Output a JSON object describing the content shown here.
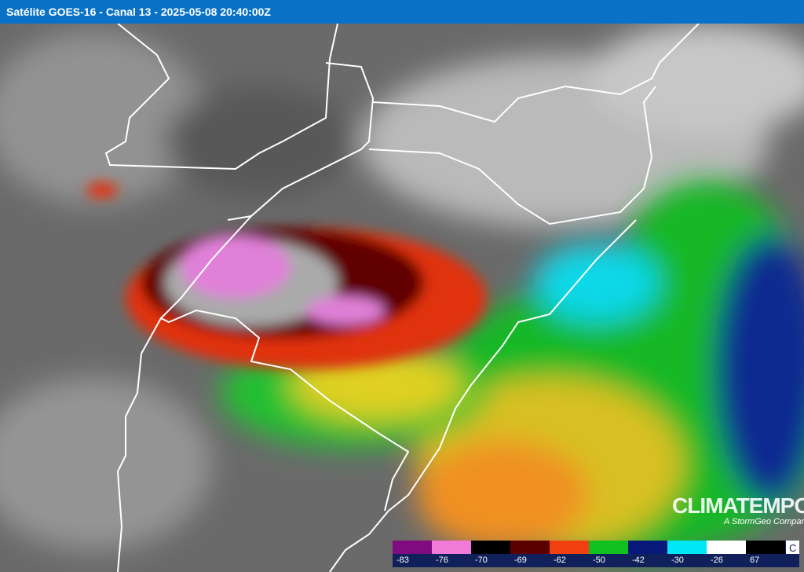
{
  "header": {
    "title": "Satélite GOES-16 - Canal 13 - 2025-05-08 20:40:00Z"
  },
  "logo": {
    "name": "CLIMATEMPO",
    "tagline": "A StormGeo Company"
  },
  "legend": {
    "unit": "C",
    "items": [
      {
        "color": "#800a80",
        "label": -83
      },
      {
        "color": "#f07ad8",
        "label": -76
      },
      {
        "color": "#000000",
        "label": -70
      },
      {
        "color": "#5a0000",
        "label": -69
      },
      {
        "color": "#f04010",
        "label": -62
      },
      {
        "color": "#10c020",
        "label": -50
      },
      {
        "color": "#081878",
        "label": -42
      },
      {
        "color": "#00e8f8",
        "label": -30
      },
      {
        "color": "#ffffff",
        "label": -26
      },
      {
        "color": "#000000",
        "label": 67
      }
    ]
  }
}
